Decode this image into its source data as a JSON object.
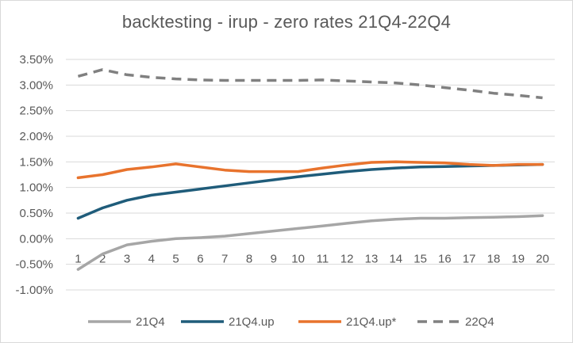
{
  "chart_data": {
    "type": "line",
    "title": "backtesting - irup  -  zero rates  21Q4-22Q4",
    "x": [
      1,
      2,
      3,
      4,
      5,
      6,
      7,
      8,
      9,
      10,
      11,
      12,
      13,
      14,
      15,
      16,
      17,
      18,
      19,
      20
    ],
    "ylim": [
      -1.0,
      3.5
    ],
    "yticks": [
      "3.50%",
      "3.00%",
      "2.50%",
      "2.00%",
      "1.50%",
      "1.00%",
      "0.50%",
      "0.00%",
      "-0.50%",
      "-1.00%"
    ],
    "ytick_values": [
      3.5,
      3.0,
      2.5,
      2.0,
      1.5,
      1.0,
      0.5,
      0.0,
      -0.5,
      -1.0
    ],
    "grid": true,
    "legend_position": "bottom",
    "series": [
      {
        "name": "21Q4",
        "color": "#a6a6a6",
        "dash": false,
        "values": [
          -0.6,
          -0.3,
          -0.12,
          -0.05,
          0.0,
          0.02,
          0.05,
          0.1,
          0.15,
          0.2,
          0.25,
          0.3,
          0.35,
          0.38,
          0.4,
          0.4,
          0.41,
          0.42,
          0.43,
          0.45
        ]
      },
      {
        "name": "21Q4.up",
        "color": "#1f5c7a",
        "dash": false,
        "values": [
          0.4,
          0.6,
          0.75,
          0.85,
          0.91,
          0.97,
          1.03,
          1.09,
          1.15,
          1.21,
          1.26,
          1.31,
          1.35,
          1.38,
          1.4,
          1.41,
          1.42,
          1.43,
          1.44,
          1.45
        ]
      },
      {
        "name": "21Q4.up*",
        "color": "#e8732d",
        "dash": false,
        "values": [
          1.19,
          1.25,
          1.35,
          1.4,
          1.46,
          1.4,
          1.34,
          1.31,
          1.31,
          1.31,
          1.38,
          1.44,
          1.49,
          1.5,
          1.49,
          1.48,
          1.45,
          1.43,
          1.45,
          1.45
        ]
      },
      {
        "name": "22Q4",
        "color": "#808080",
        "dash": true,
        "values": [
          3.17,
          3.3,
          3.2,
          3.15,
          3.12,
          3.1,
          3.09,
          3.09,
          3.09,
          3.09,
          3.1,
          3.08,
          3.06,
          3.04,
          3.0,
          2.95,
          2.9,
          2.84,
          2.8,
          2.75
        ]
      }
    ]
  }
}
